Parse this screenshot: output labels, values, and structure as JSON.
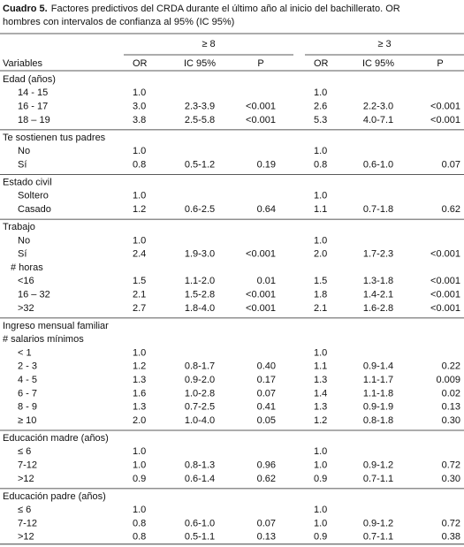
{
  "header": {
    "label": "Cuadro 5.",
    "lines": [
      "Factores predictivos del CRDA durante el último año al inicio del bachillerato. OR",
      "hombres con intervalos de confianza al 95% (IC 95%)"
    ]
  },
  "table": {
    "spans": [
      "≥ 8",
      "≥ 3"
    ],
    "columns": [
      "Variables",
      "OR",
      "IC 95%",
      "P",
      "OR",
      "IC 95%",
      "P"
    ],
    "groups": [
      {
        "title": "Edad (años)",
        "rows": [
          {
            "label": "14 - 15",
            "cells": [
              "1.0",
              null,
              null,
              "1.0",
              null,
              null
            ]
          },
          {
            "label": "16 - 17",
            "cells": [
              "3.0",
              "2.3-3.9",
              "<0.001",
              "2.6",
              "2.2-3.0",
              "<0.001"
            ]
          },
          {
            "label": "18 – 19",
            "cells": [
              "3.8",
              "2.5-5.8",
              "<0.001",
              "5.3",
              "4.0-7.1",
              "<0.001"
            ]
          }
        ]
      },
      {
        "title": "Te sostienen tus padres",
        "rows": [
          {
            "label": "No",
            "cells": [
              "1.0",
              null,
              null,
              "1.0",
              null,
              null
            ]
          },
          {
            "label": "Sí",
            "cells": [
              "0.8",
              "0.5-1.2",
              "0.19",
              "0.8",
              "0.6-1.0",
              "0.07"
            ]
          }
        ]
      },
      {
        "title": "Estado civil",
        "rows": [
          {
            "label": "Soltero",
            "cells": [
              "1.0",
              null,
              null,
              "1.0",
              null,
              null
            ]
          },
          {
            "label": "Casado",
            "cells": [
              "1.2",
              "0.6-2.5",
              "0.64",
              "1.1",
              "0.7-1.8",
              "0.62"
            ]
          }
        ]
      },
      {
        "title": "Trabajo",
        "rows": [
          {
            "label": "No",
            "cells": [
              "1.0",
              null,
              null,
              "1.0",
              null,
              null
            ]
          },
          {
            "label": "Sí",
            "cells": [
              "2.4",
              "1.9-3.0",
              "<0.001",
              "2.0",
              "1.7-2.3",
              "<0.001"
            ]
          },
          {
            "label": "# horas",
            "cells": [
              null,
              null,
              null,
              null,
              null,
              null
            ]
          },
          {
            "label": "<16",
            "cells": [
              "1.5",
              "1.1-2.0",
              "0.01",
              "1.5",
              "1.3-1.8",
              "<0.001"
            ]
          },
          {
            "label": "16 – 32",
            "cells": [
              "2.1",
              "1.5-2.8",
              "<0.001",
              "1.8",
              "1.4-2.1",
              "<0.001"
            ]
          },
          {
            "label": ">32",
            "cells": [
              "2.7",
              "1.8-4.0",
              "<0.001",
              "2.1",
              "1.6-2.8",
              "<0.001"
            ]
          }
        ]
      },
      {
        "title": "Ingreso mensual familiar",
        "subtitle": "# salarios mínimos",
        "rows": [
          {
            "label": "< 1",
            "cells": [
              "1.0",
              null,
              null,
              "1.0",
              null,
              null
            ]
          },
          {
            "label": "2 - 3",
            "cells": [
              "1.2",
              "0.8-1.7",
              "0.40",
              "1.1",
              "0.9-1.4",
              "0.22"
            ]
          },
          {
            "label": "4 - 5",
            "cells": [
              "1.3",
              "0.9-2.0",
              "0.17",
              "1.3",
              "1.1-1.7",
              "0.009"
            ]
          },
          {
            "label": "6 - 7",
            "cells": [
              "1.6",
              "1.0-2.8",
              "0.07",
              "1.4",
              "1.1-1.8",
              "0.02"
            ]
          },
          {
            "label": "8 - 9",
            "cells": [
              "1.3",
              "0.7-2.5",
              "0.41",
              "1.3",
              "0.9-1.9",
              "0.13"
            ]
          },
          {
            "label": "≥ 10",
            "cells": [
              "2.0",
              "1.0-4.0",
              "0.05",
              "1.2",
              "0.8-1.8",
              "0.30"
            ]
          }
        ]
      },
      {
        "title": "Educación madre (años)",
        "rows": [
          {
            "label": "≤ 6",
            "cells": [
              "1.0",
              null,
              null,
              "1.0",
              null,
              null
            ]
          },
          {
            "label": "7-12",
            "cells": [
              "1.0",
              "0.8-1.3",
              "0.96",
              "1.0",
              "0.9-1.2",
              "0.72"
            ]
          },
          {
            "label": ">12",
            "cells": [
              "0.9",
              "0.6-1.4",
              "0.62",
              "0.9",
              "0.7-1.1",
              "0.30"
            ]
          }
        ]
      },
      {
        "title": "Educación padre (años)",
        "rows": [
          {
            "label": "≤ 6",
            "cells": [
              "1.0",
              null,
              null,
              "1.0",
              null,
              null
            ]
          },
          {
            "label": "7-12",
            "cells": [
              "0.8",
              "0.6-1.0",
              "0.07",
              "1.0",
              "0.9-1.2",
              "0.72"
            ]
          },
          {
            "label": ">12",
            "cells": [
              "0.8",
              "0.5-1.1",
              "0.13",
              "0.9",
              "0.7-1.1",
              "0.38"
            ]
          }
        ]
      }
    ]
  }
}
